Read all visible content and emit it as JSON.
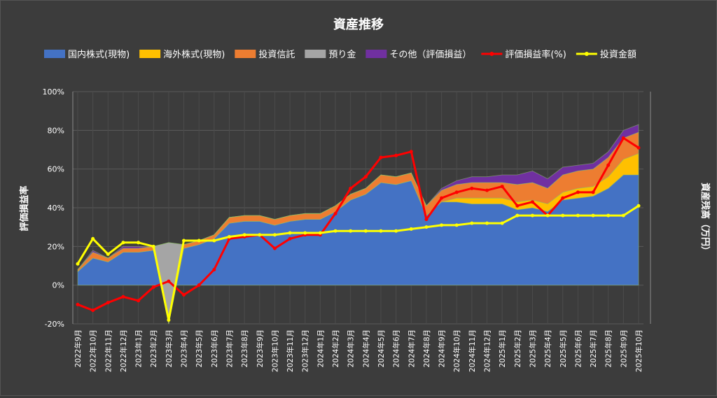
{
  "chart_data": {
    "type": "area",
    "title": "資産推移",
    "ylabel": "評価損益率",
    "y2label": "資産残高（万円）",
    "ylim": [
      -20,
      100
    ],
    "yticks": [
      "-20%",
      "0%",
      "20%",
      "40%",
      "60%",
      "80%",
      "100%"
    ],
    "grid": true,
    "legend_position": "top",
    "categories": [
      "2022年9月",
      "2022年10月",
      "2022年11月",
      "2022年12月",
      "2023年1月",
      "2023年2月",
      "2023年3月",
      "2023年4月",
      "2023年5月",
      "2023年6月",
      "2023年7月",
      "2023年8月",
      "2023年9月",
      "2023年10月",
      "2023年11月",
      "2023年12月",
      "2024年1月",
      "2024年2月",
      "2024年3月",
      "2024年4月",
      "2024年5月",
      "2024年6月",
      "2024年7月",
      "2024年8月",
      "2024年9月",
      "2024年10月",
      "2024年11月",
      "2024年12月",
      "2025年1月",
      "2025年2月",
      "2025年3月",
      "2025年4月",
      "2025年5月",
      "2025年6月",
      "2025年7月",
      "2025年8月",
      "2025年9月",
      "2025年10月"
    ],
    "series": [
      {
        "name": "国内株式(現物)",
        "kind": "area",
        "color": "#4472c4",
        "values": [
          7,
          14,
          12,
          17,
          17,
          18,
          -20,
          19,
          21,
          24,
          32,
          33,
          33,
          31,
          33,
          34,
          34,
          38,
          44,
          47,
          53,
          52,
          54,
          36,
          43,
          43,
          42,
          42,
          42,
          39,
          40,
          38,
          44,
          45,
          46,
          50,
          57,
          57
        ]
      },
      {
        "name": "海外株式(現物)",
        "kind": "area",
        "color": "#ffc000",
        "values": [
          0,
          0,
          0,
          0,
          0,
          0,
          0,
          0,
          0,
          0,
          0,
          0,
          0,
          0,
          0,
          0,
          0,
          0,
          0,
          0,
          0,
          0,
          0,
          0,
          0,
          2,
          3,
          3,
          3,
          4,
          4,
          4,
          4,
          5,
          5,
          6,
          8,
          11
        ]
      },
      {
        "name": "投資信託",
        "kind": "area",
        "color": "#ed7d31",
        "values": [
          1,
          3,
          2,
          2,
          2,
          2,
          2,
          2,
          2,
          2,
          3,
          3,
          3,
          3,
          3,
          3,
          3,
          3,
          3,
          3,
          4,
          4,
          4,
          5,
          6,
          7,
          8,
          8,
          8,
          9,
          9,
          8,
          9,
          9,
          9,
          10,
          11,
          11
        ]
      },
      {
        "name": "預り金",
        "kind": "area",
        "color": "#a5a5a5",
        "values": [
          0,
          0,
          0,
          0,
          0,
          0,
          40,
          0,
          0,
          0,
          0,
          0,
          0,
          0,
          0,
          0,
          0,
          0,
          0,
          0,
          0,
          0,
          0,
          0,
          0,
          0,
          0,
          0,
          0,
          0,
          0,
          0,
          0,
          0,
          0,
          0,
          0,
          0
        ]
      },
      {
        "name": "その他（評価損益）",
        "kind": "area",
        "color": "#7030a0",
        "values": [
          0,
          1,
          0,
          1,
          1,
          0,
          0,
          0,
          0,
          0,
          0,
          0,
          0,
          0,
          0,
          0,
          0,
          0,
          0,
          0,
          0,
          0,
          0,
          0,
          1,
          2,
          3,
          3,
          4,
          5,
          6,
          5,
          4,
          3,
          3,
          3,
          4,
          4
        ]
      },
      {
        "name": "評価損益率(%)",
        "kind": "line",
        "color": "#ff0000",
        "values": [
          -10,
          -13,
          -9,
          -6,
          -8,
          -1,
          2,
          -5,
          0,
          8,
          24,
          25,
          26,
          19,
          24,
          26,
          26,
          37,
          50,
          56,
          66,
          67,
          69,
          34,
          45,
          48,
          50,
          49,
          51,
          41,
          43,
          36,
          45,
          48,
          48,
          62,
          76,
          71
        ]
      },
      {
        "name": "投資金額",
        "kind": "line",
        "color": "#ffff00",
        "values": [
          11,
          24,
          16,
          22,
          22,
          20,
          -18,
          23,
          23,
          23,
          25,
          26,
          26,
          26,
          27,
          27,
          27,
          28,
          28,
          28,
          28,
          28,
          29,
          30,
          31,
          31,
          32,
          32,
          32,
          36,
          36,
          36,
          36,
          36,
          36,
          36,
          36,
          41
        ]
      }
    ]
  }
}
